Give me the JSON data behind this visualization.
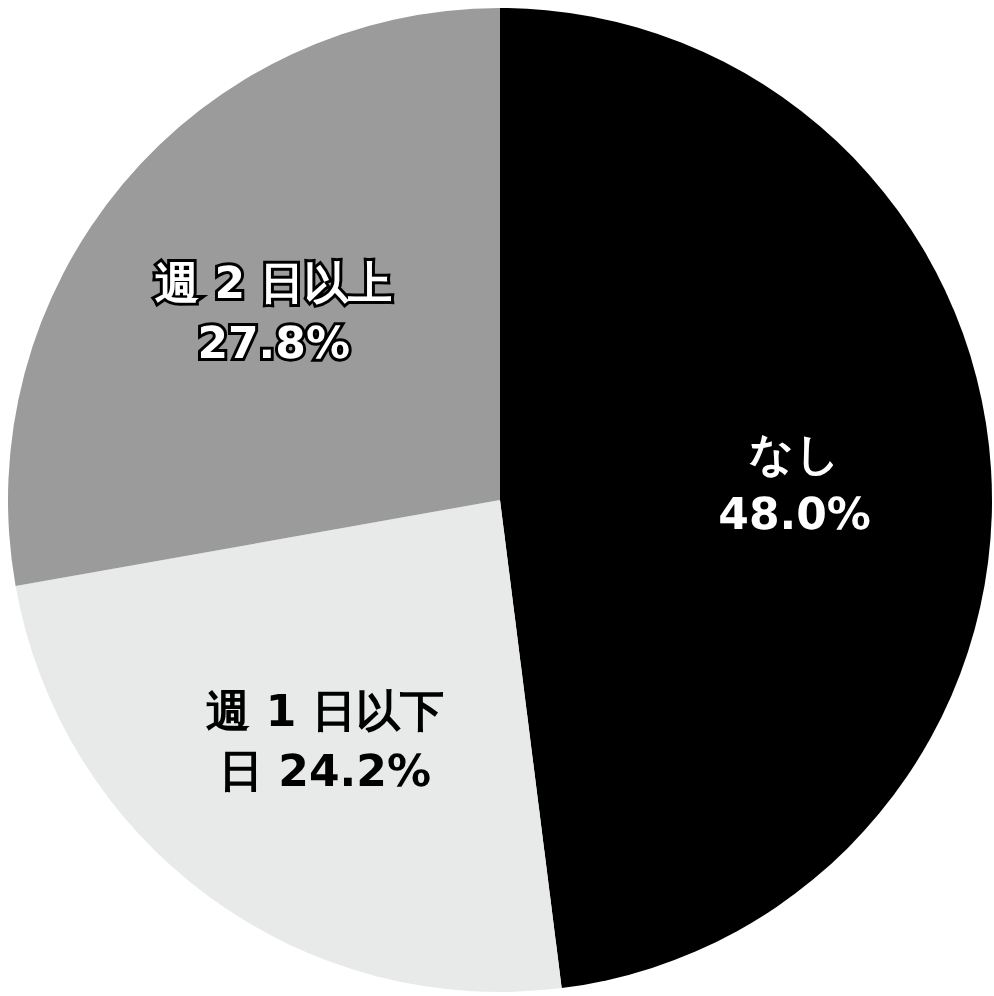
{
  "chart_data": {
    "type": "pie",
    "categories": [
      "なし",
      "週 1 日以下",
      "週 2 日以上"
    ],
    "values": [
      48.0,
      24.2,
      27.8
    ],
    "value_labels": [
      "48.0%",
      "日 24.2%",
      "27.8%"
    ],
    "colors": [
      "#000000",
      "#e8eaea",
      "#9b9b9b"
    ]
  }
}
